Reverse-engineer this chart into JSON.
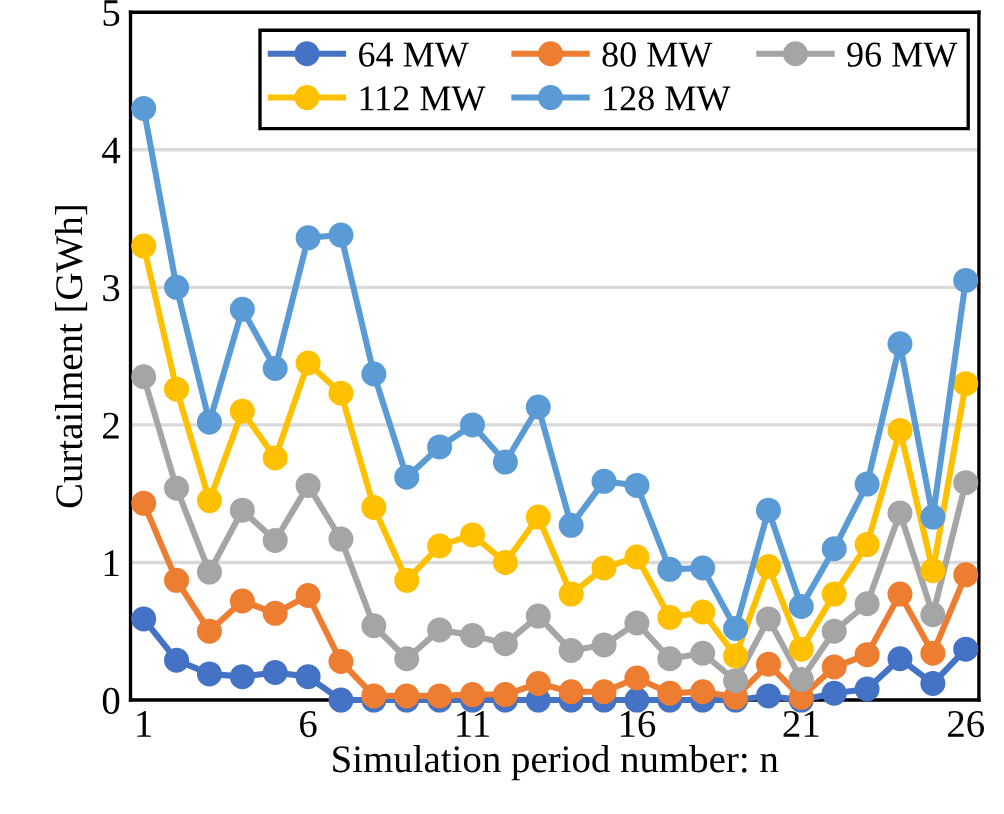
{
  "chart_data": {
    "type": "line",
    "xlabel": "Simulation period number: n",
    "ylabel": "Curtailment [GWh]",
    "x": [
      1,
      2,
      3,
      4,
      5,
      6,
      7,
      8,
      9,
      10,
      11,
      12,
      13,
      14,
      15,
      16,
      17,
      18,
      19,
      20,
      21,
      22,
      23,
      24,
      25,
      26
    ],
    "xlim": [
      0.6,
      26.4
    ],
    "xticks": [
      1,
      6,
      11,
      16,
      21,
      26
    ],
    "ylim": [
      0,
      5
    ],
    "yticks": [
      0,
      1,
      2,
      3,
      4,
      5
    ],
    "grid": "y",
    "legend": "top",
    "marker": "circle",
    "line_style": "solid",
    "series": [
      {
        "name": "64 MW",
        "color": "#4472c4",
        "values": [
          0.59,
          0.29,
          0.19,
          0.17,
          0.2,
          0.17,
          0,
          0,
          0,
          0,
          0,
          0,
          0,
          0,
          0,
          0,
          0,
          0,
          0,
          0.03,
          0,
          0.05,
          0.08,
          0.3,
          0.12,
          0.37
        ]
      },
      {
        "name": "80 MW",
        "color": "#ed7d31",
        "values": [
          1.43,
          0.87,
          0.5,
          0.72,
          0.63,
          0.76,
          0.28,
          0.03,
          0.03,
          0.03,
          0.04,
          0.04,
          0.12,
          0.06,
          0.06,
          0.16,
          0.05,
          0.06,
          0.02,
          0.26,
          0.02,
          0.24,
          0.33,
          0.77,
          0.34,
          0.91
        ]
      },
      {
        "name": "96 MW",
        "color": "#a5a5a5",
        "values": [
          2.35,
          1.54,
          0.93,
          1.38,
          1.16,
          1.56,
          1.17,
          0.54,
          0.3,
          0.51,
          0.47,
          0.41,
          0.61,
          0.36,
          0.4,
          0.56,
          0.3,
          0.34,
          0.14,
          0.59,
          0.15,
          0.5,
          0.7,
          1.36,
          0.62,
          1.58
        ]
      },
      {
        "name": "112 MW",
        "color": "#ffc000",
        "values": [
          3.3,
          2.26,
          1.45,
          2.1,
          1.76,
          2.45,
          2.23,
          1.4,
          0.87,
          1.12,
          1.2,
          1.0,
          1.33,
          0.77,
          0.96,
          1.04,
          0.6,
          0.64,
          0.32,
          0.97,
          0.37,
          0.77,
          1.13,
          1.96,
          0.94,
          2.3
        ]
      },
      {
        "name": "128 MW",
        "color": "#5b9bd5",
        "values": [
          4.3,
          3.0,
          2.02,
          2.84,
          2.41,
          3.36,
          3.38,
          2.37,
          1.62,
          1.84,
          2.0,
          1.73,
          2.13,
          1.27,
          1.59,
          1.56,
          0.95,
          0.96,
          0.52,
          1.38,
          0.68,
          1.1,
          1.57,
          2.59,
          1.33,
          3.05
        ]
      }
    ]
  }
}
